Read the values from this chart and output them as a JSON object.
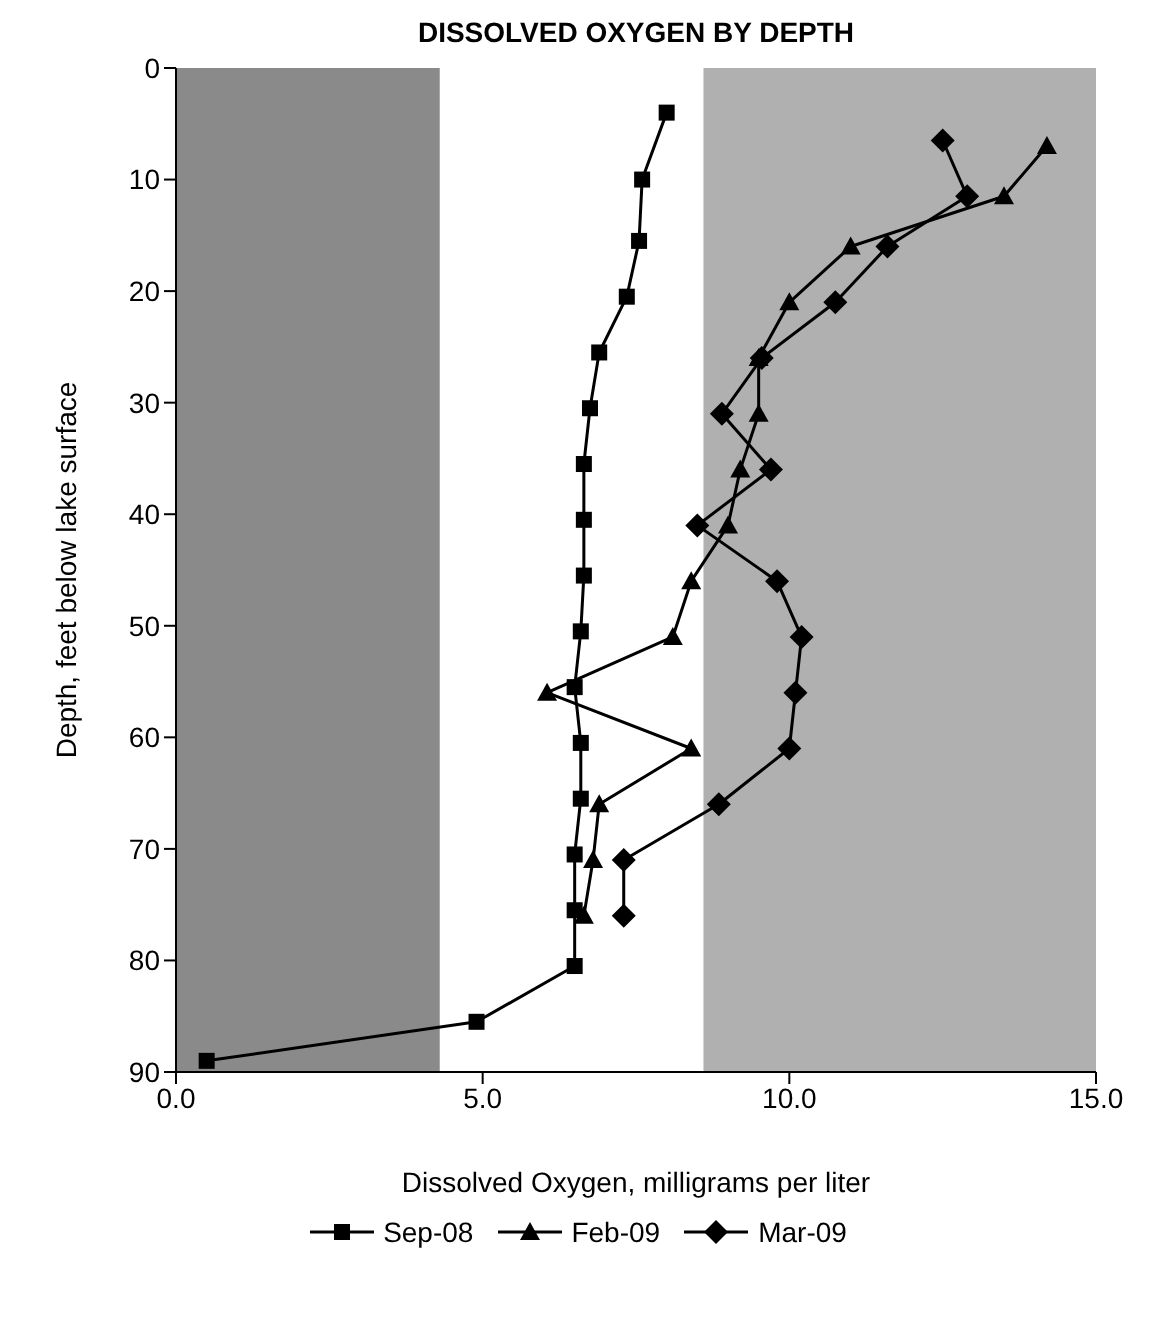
{
  "chart_data": {
    "type": "line",
    "title": "DISSOLVED OXYGEN BY DEPTH",
    "xlabel": "Dissolved Oxygen, milligrams per liter",
    "ylabel": "Depth, feet below lake surface",
    "xlim": [
      0,
      15
    ],
    "xticks": [
      {
        "value": 0,
        "label": "0.0"
      },
      {
        "value": 5,
        "label": "5.0"
      },
      {
        "value": 10,
        "label": "10.0"
      },
      {
        "value": 15,
        "label": "15.0"
      }
    ],
    "ylim": [
      90,
      0
    ],
    "yticks": [
      0,
      10,
      20,
      30,
      40,
      50,
      60,
      70,
      80,
      90
    ],
    "grid": false,
    "legend": "bottom",
    "bands": [
      {
        "axis": "x",
        "from": 0,
        "to": 4.3,
        "color": "#8a8a8a"
      },
      {
        "axis": "x",
        "from": 8.6,
        "to": 15,
        "color": "#b0b0b0"
      }
    ],
    "series": [
      {
        "name": "Sep-08",
        "color": "#000000",
        "marker": "square",
        "x": [
          8.0,
          7.6,
          7.55,
          7.35,
          6.9,
          6.75,
          6.65,
          6.65,
          6.65,
          6.6,
          6.5,
          6.6,
          6.6,
          6.5,
          6.5,
          6.5,
          4.9,
          0.5
        ],
        "values": [
          4,
          10,
          15.5,
          20.5,
          25.5,
          30.5,
          35.5,
          40.5,
          45.5,
          50.5,
          55.5,
          60.5,
          65.5,
          70.5,
          75.5,
          80.5,
          85.5,
          89
        ]
      },
      {
        "name": "Feb-09",
        "color": "#000000",
        "marker": "triangle",
        "x": [
          14.2,
          13.5,
          11.0,
          10.0,
          9.5,
          9.5,
          9.2,
          9.0,
          8.4,
          8.1,
          6.05,
          8.4,
          6.9,
          6.8,
          6.65
        ],
        "values": [
          7,
          11.5,
          16,
          21,
          26,
          31,
          36,
          41,
          46,
          51,
          56,
          61,
          66,
          71,
          76
        ]
      },
      {
        "name": "Mar-09",
        "color": "#000000",
        "marker": "diamond",
        "x": [
          12.5,
          12.9,
          11.6,
          10.75,
          9.55,
          8.9,
          9.7,
          8.5,
          9.8,
          10.2,
          10.1,
          10.0,
          8.85,
          7.3,
          7.3
        ],
        "values": [
          6.5,
          11.5,
          16,
          21,
          26,
          31,
          36,
          41,
          46,
          51,
          56,
          61,
          66,
          71,
          76
        ]
      }
    ]
  }
}
